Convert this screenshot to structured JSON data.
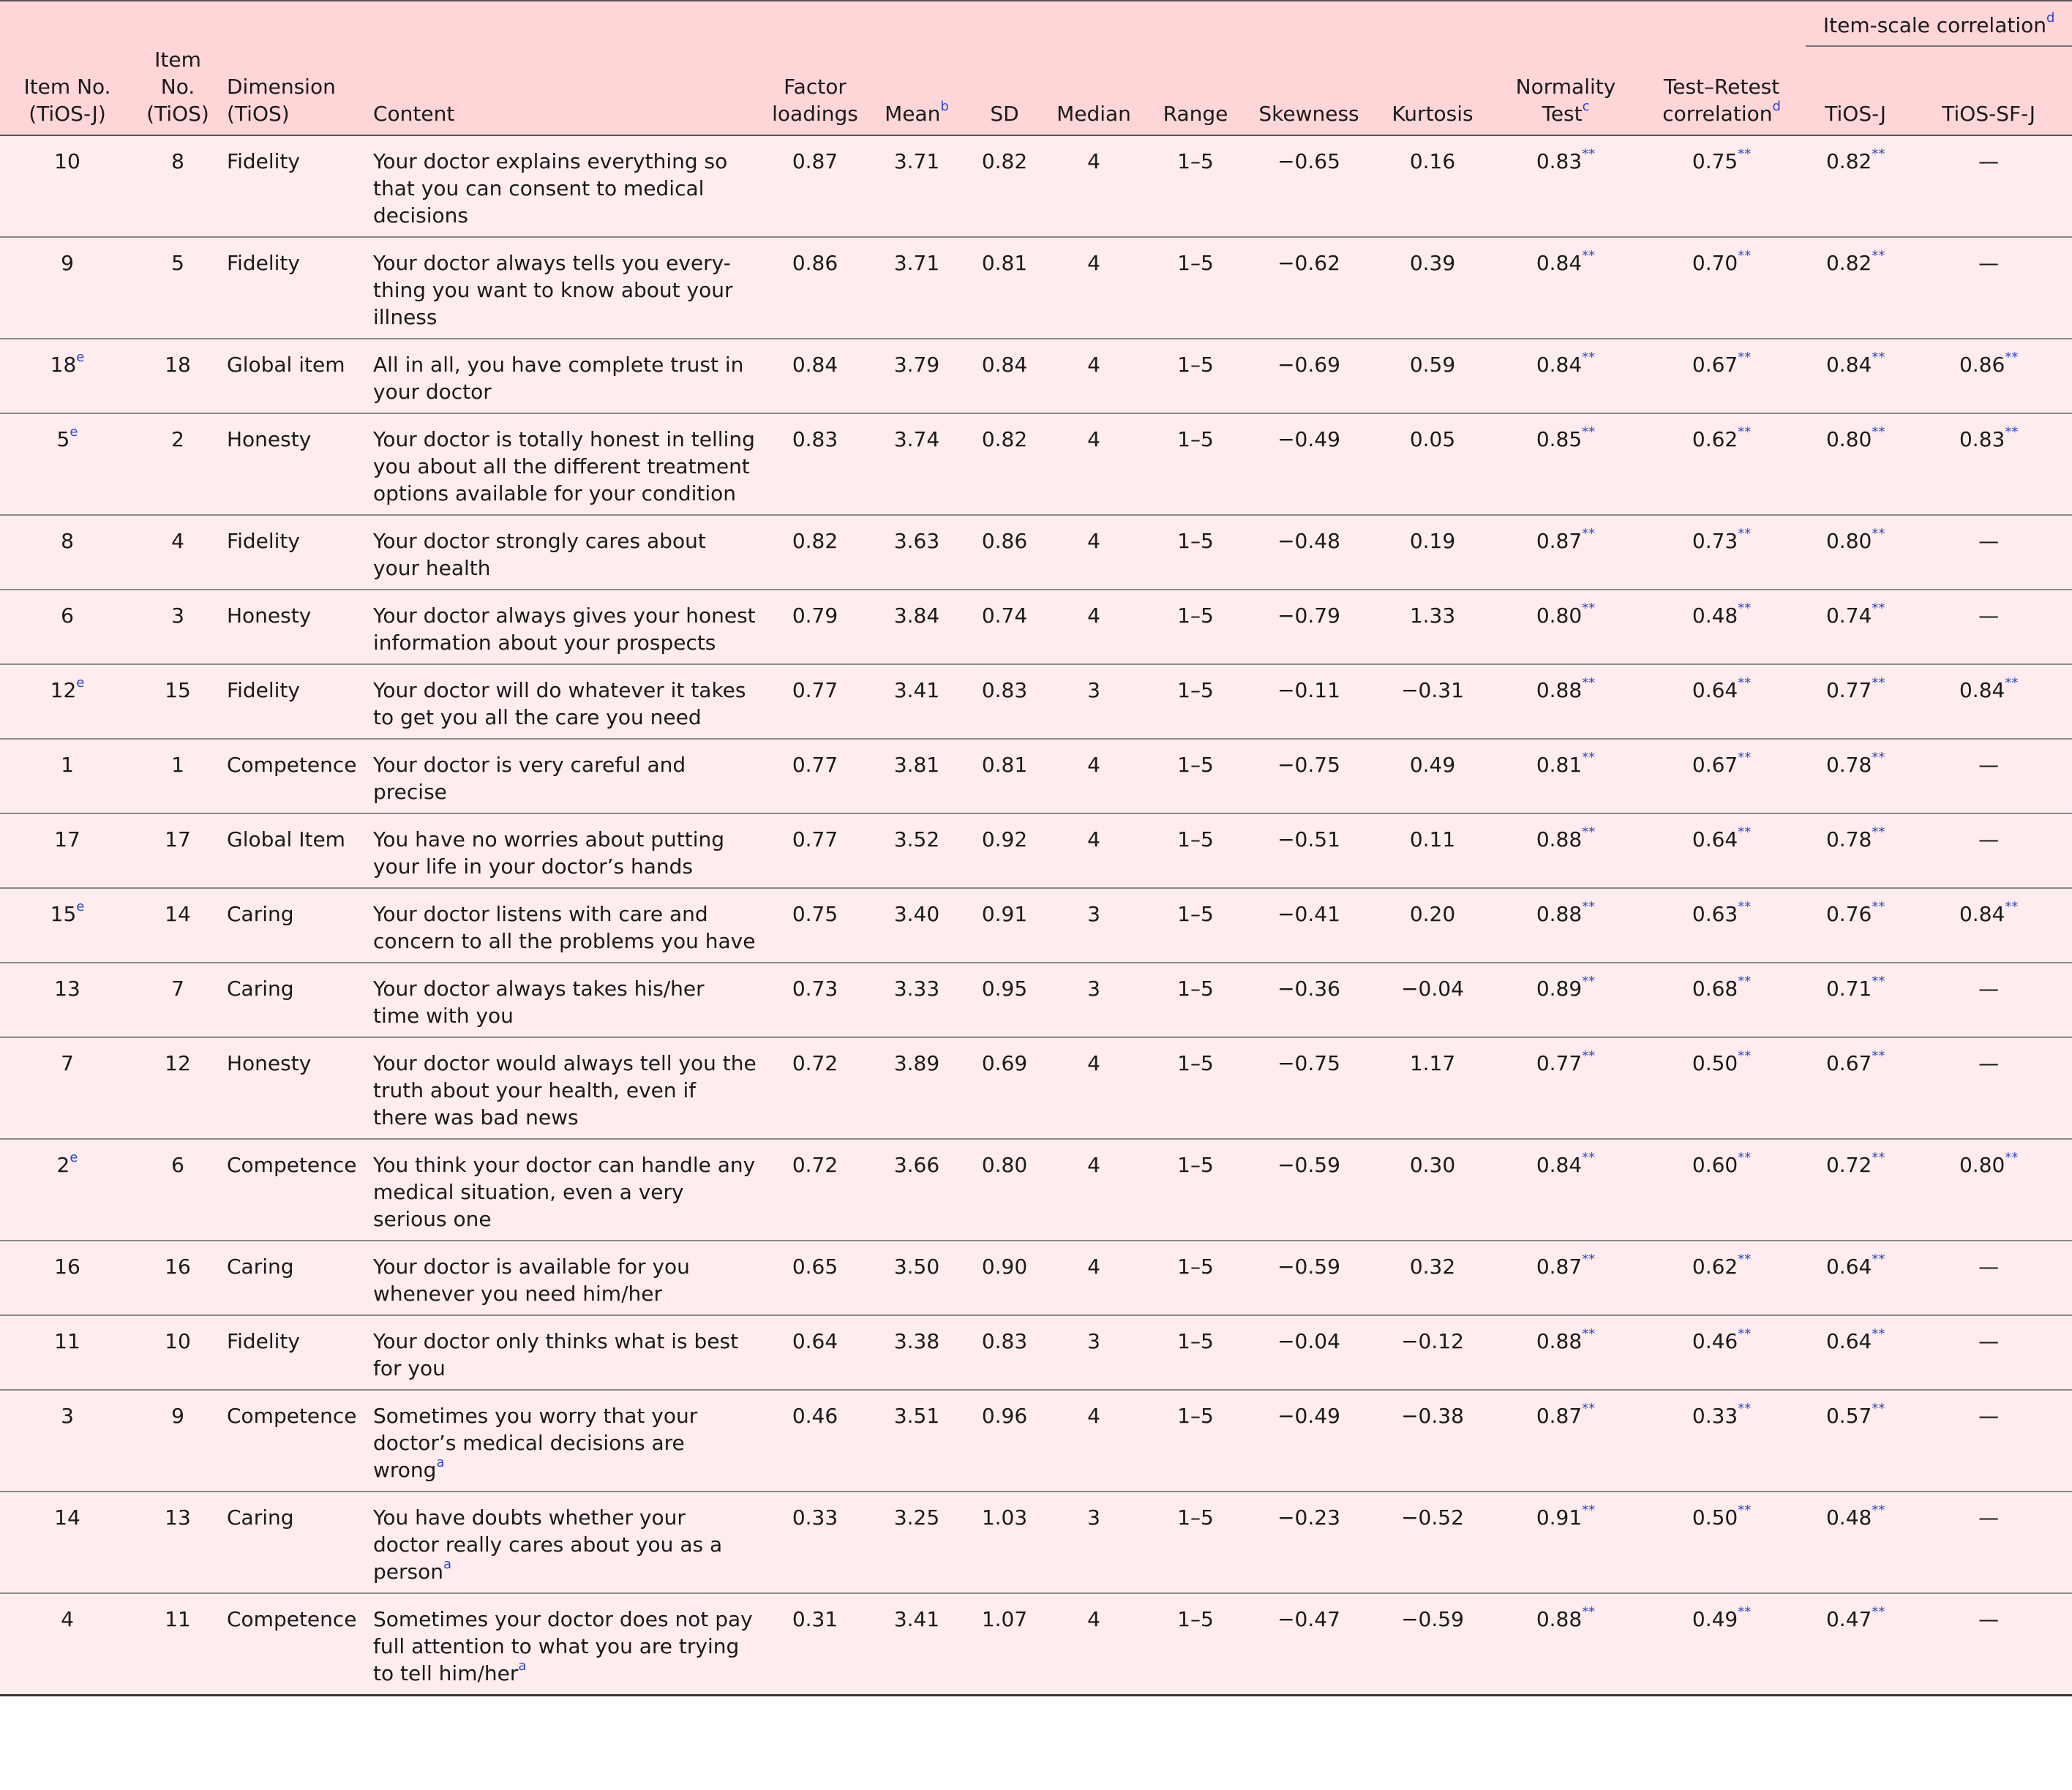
{
  "header": {
    "group_label": "Item-scale correlation",
    "group_sup": "d",
    "columns": [
      {
        "key": "item_j",
        "label": "Item No. (TiOS-J)",
        "sup": ""
      },
      {
        "key": "item_t",
        "label": "Item No. (TiOS)",
        "sup": ""
      },
      {
        "key": "dim",
        "label": "Dimension (TiOS)",
        "sup": ""
      },
      {
        "key": "content",
        "label": "Content",
        "sup": ""
      },
      {
        "key": "factor",
        "label": "Factor loadings",
        "sup": ""
      },
      {
        "key": "mean",
        "label": "Mean",
        "sup": "b"
      },
      {
        "key": "sd",
        "label": "SD",
        "sup": ""
      },
      {
        "key": "median",
        "label": "Median",
        "sup": ""
      },
      {
        "key": "range",
        "label": "Range",
        "sup": ""
      },
      {
        "key": "skew",
        "label": "Skewness",
        "sup": ""
      },
      {
        "key": "kurt",
        "label": "Kurtosis",
        "sup": ""
      },
      {
        "key": "norm",
        "label": "Normality Test",
        "sup": "c"
      },
      {
        "key": "ttr",
        "label": "Test–Retest correlation",
        "sup": "d"
      },
      {
        "key": "tiosj",
        "label": "TiOS-J",
        "sup": ""
      },
      {
        "key": "tiossf",
        "label": "TiOS-SF-J",
        "sup": ""
      }
    ],
    "signif_mark": "**"
  },
  "rows": [
    {
      "item_j": "10",
      "item_j_sup": "",
      "item_t": "8",
      "dim": "Fidelity",
      "content": "Your doctor explains everything so that you can consent to medical decisions",
      "content_sup": "",
      "factor": "0.87",
      "mean": "3.71",
      "sd": "0.82",
      "median": "4",
      "range": "1–5",
      "skew": "−0.65",
      "kurt": "0.16",
      "norm": "0.83",
      "ttr": "0.75",
      "tiosj": "0.82",
      "tiossf": "—"
    },
    {
      "item_j": "9",
      "item_j_sup": "",
      "item_t": "5",
      "dim": "Fidelity",
      "content": "Your doctor always tells you every-thing you want to know about your illness",
      "content_sup": "",
      "factor": "0.86",
      "mean": "3.71",
      "sd": "0.81",
      "median": "4",
      "range": "1–5",
      "skew": "−0.62",
      "kurt": "0.39",
      "norm": "0.84",
      "ttr": "0.70",
      "tiosj": "0.82",
      "tiossf": "—"
    },
    {
      "item_j": "18",
      "item_j_sup": "e",
      "item_t": "18",
      "dim": "Global item",
      "content": "All in all, you have complete trust in your doctor",
      "content_sup": "",
      "factor": "0.84",
      "mean": "3.79",
      "sd": "0.84",
      "median": "4",
      "range": "1–5",
      "skew": "−0.69",
      "kurt": "0.59",
      "norm": "0.84",
      "ttr": "0.67",
      "tiosj": "0.84",
      "tiossf": "0.86"
    },
    {
      "item_j": "5",
      "item_j_sup": "e",
      "item_t": "2",
      "dim": "Honesty",
      "content": "Your doctor is totally honest in telling you about all the different treatment options available for your condition",
      "content_sup": "",
      "factor": "0.83",
      "mean": "3.74",
      "sd": "0.82",
      "median": "4",
      "range": "1–5",
      "skew": "−0.49",
      "kurt": "0.05",
      "norm": "0.85",
      "ttr": "0.62",
      "tiosj": "0.80",
      "tiossf": "0.83"
    },
    {
      "item_j": "8",
      "item_j_sup": "",
      "item_t": "4",
      "dim": "Fidelity",
      "content": "Your doctor strongly cares about your health",
      "content_sup": "",
      "factor": "0.82",
      "mean": "3.63",
      "sd": "0.86",
      "median": "4",
      "range": "1–5",
      "skew": "−0.48",
      "kurt": "0.19",
      "norm": "0.87",
      "ttr": "0.73",
      "tiosj": "0.80",
      "tiossf": "—"
    },
    {
      "item_j": "6",
      "item_j_sup": "",
      "item_t": "3",
      "dim": "Honesty",
      "content": "Your doctor always gives your honest information about your prospects",
      "content_sup": "",
      "factor": "0.79",
      "mean": "3.84",
      "sd": "0.74",
      "median": "4",
      "range": "1–5",
      "skew": "−0.79",
      "kurt": "1.33",
      "norm": "0.80",
      "ttr": "0.48",
      "tiosj": "0.74",
      "tiossf": "—"
    },
    {
      "item_j": "12",
      "item_j_sup": "e",
      "item_t": "15",
      "dim": "Fidelity",
      "content": "Your doctor will do whatever it takes to get you all the care you need",
      "content_sup": "",
      "factor": "0.77",
      "mean": "3.41",
      "sd": "0.83",
      "median": "3",
      "range": "1–5",
      "skew": "−0.11",
      "kurt": "−0.31",
      "norm": "0.88",
      "ttr": "0.64",
      "tiosj": "0.77",
      "tiossf": "0.84"
    },
    {
      "item_j": "1",
      "item_j_sup": "",
      "item_t": "1",
      "dim": "Competence",
      "content": "Your doctor is very careful and precise",
      "content_sup": "",
      "factor": "0.77",
      "mean": "3.81",
      "sd": "0.81",
      "median": "4",
      "range": "1–5",
      "skew": "−0.75",
      "kurt": "0.49",
      "norm": "0.81",
      "ttr": "0.67",
      "tiosj": "0.78",
      "tiossf": "—"
    },
    {
      "item_j": "17",
      "item_j_sup": "",
      "item_t": "17",
      "dim": "Global Item",
      "content": "You have no worries about putting your life in your doctor’s hands",
      "content_sup": "",
      "factor": "0.77",
      "mean": "3.52",
      "sd": "0.92",
      "median": "4",
      "range": "1–5",
      "skew": "−0.51",
      "kurt": "0.11",
      "norm": "0.88",
      "ttr": "0.64",
      "tiosj": "0.78",
      "tiossf": "—"
    },
    {
      "item_j": "15",
      "item_j_sup": "e",
      "item_t": "14",
      "dim": "Caring",
      "content": "Your doctor listens with care and concern to all the problems you have",
      "content_sup": "",
      "factor": "0.75",
      "mean": "3.40",
      "sd": "0.91",
      "median": "3",
      "range": "1–5",
      "skew": "−0.41",
      "kurt": "0.20",
      "norm": "0.88",
      "ttr": "0.63",
      "tiosj": "0.76",
      "tiossf": "0.84"
    },
    {
      "item_j": "13",
      "item_j_sup": "",
      "item_t": "7",
      "dim": "Caring",
      "content": "Your doctor always takes his/her time with you",
      "content_sup": "",
      "factor": "0.73",
      "mean": "3.33",
      "sd": "0.95",
      "median": "3",
      "range": "1–5",
      "skew": "−0.36",
      "kurt": "−0.04",
      "norm": "0.89",
      "ttr": "0.68",
      "tiosj": "0.71",
      "tiossf": "—"
    },
    {
      "item_j": "7",
      "item_j_sup": "",
      "item_t": "12",
      "dim": "Honesty",
      "content": "Your doctor would always tell you the truth about your health, even if there was bad news",
      "content_sup": "",
      "factor": "0.72",
      "mean": "3.89",
      "sd": "0.69",
      "median": "4",
      "range": "1–5",
      "skew": "−0.75",
      "kurt": "1.17",
      "norm": "0.77",
      "ttr": "0.50",
      "tiosj": "0.67",
      "tiossf": "—"
    },
    {
      "item_j": "2",
      "item_j_sup": "e",
      "item_t": "6",
      "dim": "Competence",
      "content": "You think your doctor can handle any medical situation, even a very serious one",
      "content_sup": "",
      "factor": "0.72",
      "mean": "3.66",
      "sd": "0.80",
      "median": "4",
      "range": "1–5",
      "skew": "−0.59",
      "kurt": "0.30",
      "norm": "0.84",
      "ttr": "0.60",
      "tiosj": "0.72",
      "tiossf": "0.80"
    },
    {
      "item_j": "16",
      "item_j_sup": "",
      "item_t": "16",
      "dim": "Caring",
      "content": "Your doctor is available for you whenever you need him/her",
      "content_sup": "",
      "factor": "0.65",
      "mean": "3.50",
      "sd": "0.90",
      "median": "4",
      "range": "1–5",
      "skew": "−0.59",
      "kurt": "0.32",
      "norm": "0.87",
      "ttr": "0.62",
      "tiosj": "0.64",
      "tiossf": "—"
    },
    {
      "item_j": "11",
      "item_j_sup": "",
      "item_t": "10",
      "dim": "Fidelity",
      "content": "Your doctor only thinks what is best for you",
      "content_sup": "",
      "factor": "0.64",
      "mean": "3.38",
      "sd": "0.83",
      "median": "3",
      "range": "1–5",
      "skew": "−0.04",
      "kurt": "−0.12",
      "norm": "0.88",
      "ttr": "0.46",
      "tiosj": "0.64",
      "tiossf": "—"
    },
    {
      "item_j": "3",
      "item_j_sup": "",
      "item_t": "9",
      "dim": "Competence",
      "content": "Sometimes you worry that your doctor’s medical decisions are wrong",
      "content_sup": "a",
      "factor": "0.46",
      "mean": "3.51",
      "sd": "0.96",
      "median": "4",
      "range": "1–5",
      "skew": "−0.49",
      "kurt": "−0.38",
      "norm": "0.87",
      "ttr": "0.33",
      "tiosj": "0.57",
      "tiossf": "—"
    },
    {
      "item_j": "14",
      "item_j_sup": "",
      "item_t": "13",
      "dim": "Caring",
      "content": "You have doubts whether your doctor really cares about you as a person",
      "content_sup": "a",
      "factor": "0.33",
      "mean": "3.25",
      "sd": "1.03",
      "median": "3",
      "range": "1–5",
      "skew": "−0.23",
      "kurt": "−0.52",
      "norm": "0.91",
      "ttr": "0.50",
      "tiosj": "0.48",
      "tiossf": "—"
    },
    {
      "item_j": "4",
      "item_j_sup": "",
      "item_t": "11",
      "dim": "Competence",
      "content": "Sometimes your doctor does not pay full attention to what you are trying to tell him/her",
      "content_sup": "a",
      "factor": "0.31",
      "mean": "3.41",
      "sd": "1.07",
      "median": "4",
      "range": "1–5",
      "skew": "−0.47",
      "kurt": "−0.59",
      "norm": "0.88",
      "ttr": "0.49",
      "tiosj": "0.47",
      "tiossf": "—"
    }
  ]
}
